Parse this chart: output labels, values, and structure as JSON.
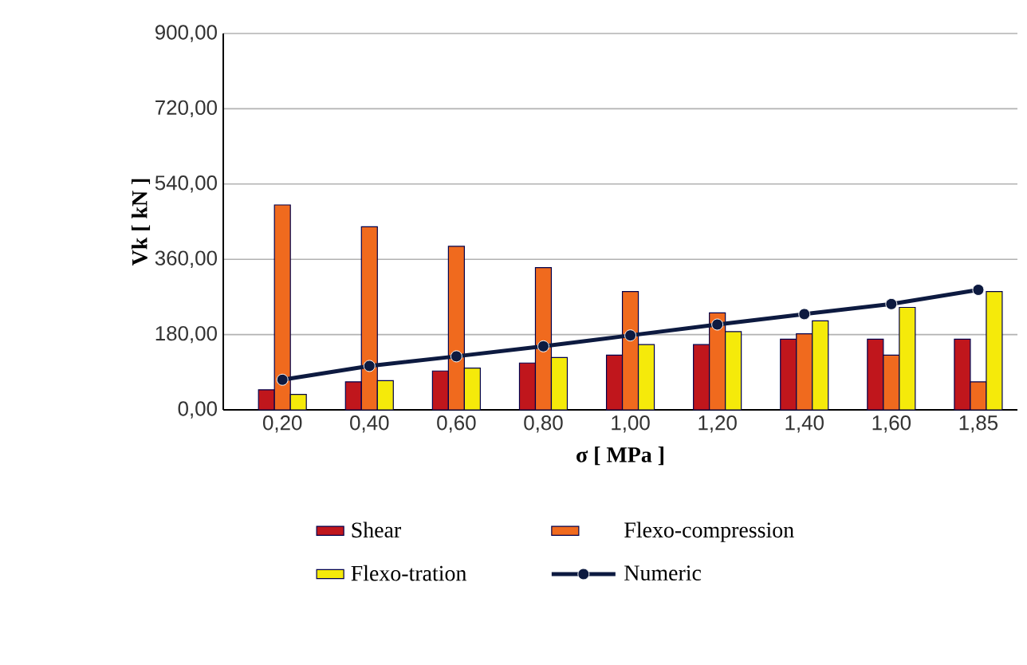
{
  "chart_data": {
    "type": "bar",
    "xlabel": "σ [ MPa ]",
    "ylabel": "Vk [ kN ]",
    "categories": [
      "0,20",
      "0,40",
      "0,60",
      "0,80",
      "1,00",
      "1,20",
      "1,40",
      "1,60",
      "1,85"
    ],
    "series": [
      {
        "name": "Shear",
        "color": "#c0161c",
        "values": [
          48,
          67,
          93,
          112,
          131,
          156,
          169,
          169,
          169
        ]
      },
      {
        "name": "Flexo-compression",
        "color": "#f06a1e",
        "values": [
          490,
          438,
          391,
          340,
          283,
          232,
          182,
          131,
          67
        ]
      },
      {
        "name": "Flexo-tration",
        "color": "#f5ea0a",
        "values": [
          37,
          70,
          100,
          125,
          156,
          187,
          213,
          245,
          283
        ]
      },
      {
        "name": "Numeric",
        "type": "line",
        "color": "#0d1a40",
        "marker": "circle",
        "values": [
          72,
          105,
          128,
          152,
          178,
          204,
          229,
          253,
          287
        ]
      }
    ],
    "ylim": [
      0,
      900
    ],
    "yticks": [
      {
        "value": 0,
        "label": "0,00"
      },
      {
        "value": 180,
        "label": "180,00"
      },
      {
        "value": 360,
        "label": "360,00"
      },
      {
        "value": 540,
        "label": "540,00"
      },
      {
        "value": 720,
        "label": "720,00"
      },
      {
        "value": 900,
        "label": "900,00"
      }
    ],
    "grid": "y",
    "legend": "bottom"
  }
}
